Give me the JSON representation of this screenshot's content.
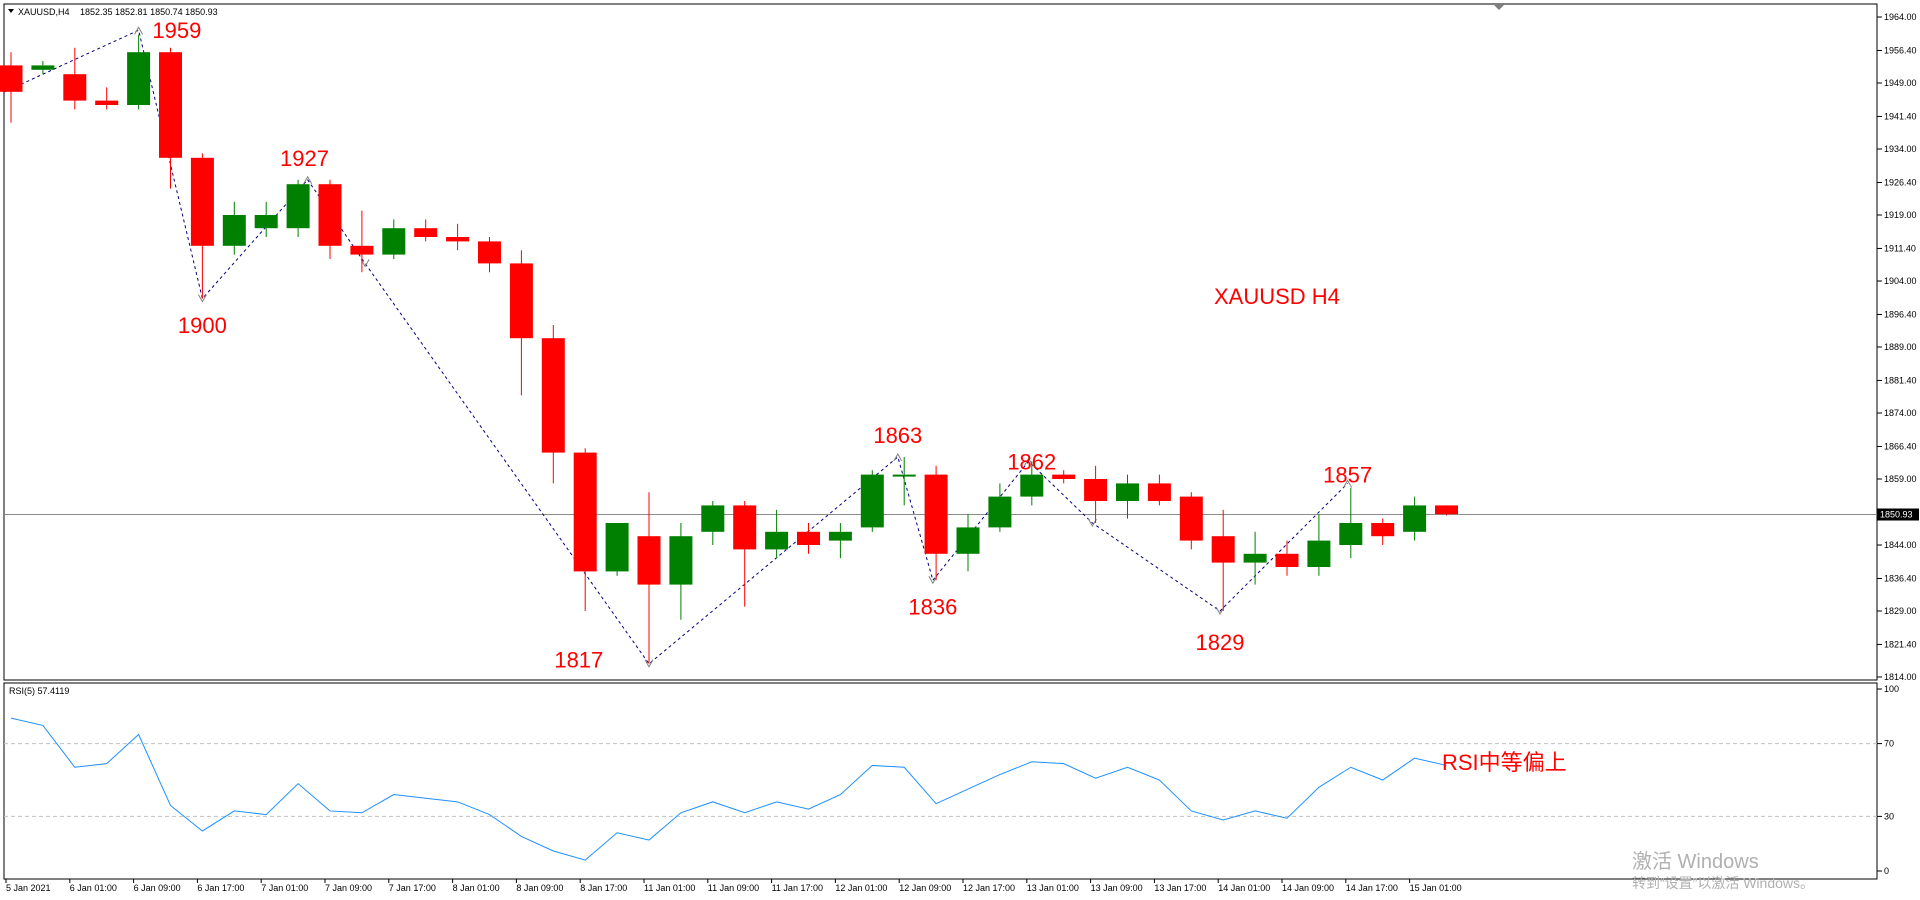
{
  "header": {
    "symbol": "XAUUSD,H4",
    "ohlc": "1852.35 1852.81 1850.74 1850.93"
  },
  "watermark": {
    "line1": "激活 Windows",
    "line2": "转到“设置”以激活 Windows。"
  },
  "colors": {
    "bull": "#008000",
    "bear": "#ff0000",
    "annotation": "#ff0000",
    "zigzag": "#000080",
    "rsi_line": "#1e90ff",
    "grid": "#c0c0c0"
  },
  "chart_data": [
    {
      "type": "candlestick",
      "title": "XAUUSD  H4",
      "ylim": [
        1814.0,
        1964.0
      ],
      "yticks": [
        "1964.00",
        "1956.40",
        "1949.00",
        "1941.40",
        "1934.00",
        "1926.40",
        "1919.00",
        "1911.40",
        "1904.00",
        "1896.40",
        "1889.00",
        "1881.40",
        "1874.00",
        "1866.40",
        "1859.00",
        "1851.40",
        "1844.00",
        "1836.40",
        "1829.00",
        "1821.40",
        "1814.00"
      ],
      "current_price": "1850.93",
      "candles": [
        {
          "o": 1953.0,
          "h": 1956.0,
          "l": 1940.0,
          "c": 1947.0
        },
        {
          "o": 1952.0,
          "h": 1954.0,
          "l": 1951.0,
          "c": 1953.0
        },
        {
          "o": 1951.0,
          "h": 1957.0,
          "l": 1943.0,
          "c": 1945.0
        },
        {
          "o": 1945.0,
          "h": 1948.0,
          "l": 1943.0,
          "c": 1944.0
        },
        {
          "o": 1944.0,
          "h": 1960.0,
          "l": 1943.0,
          "c": 1956.0
        },
        {
          "o": 1956.0,
          "h": 1957.0,
          "l": 1925.0,
          "c": 1932.0
        },
        {
          "o": 1932.0,
          "h": 1933.0,
          "l": 1900.0,
          "c": 1912.0
        },
        {
          "o": 1912.0,
          "h": 1922.0,
          "l": 1910.0,
          "c": 1919.0
        },
        {
          "o": 1916.0,
          "h": 1922.0,
          "l": 1914.0,
          "c": 1919.0
        },
        {
          "o": 1916.0,
          "h": 1927.0,
          "l": 1914.0,
          "c": 1926.0
        },
        {
          "o": 1926.0,
          "h": 1927.0,
          "l": 1909.0,
          "c": 1912.0
        },
        {
          "o": 1912.0,
          "h": 1920.0,
          "l": 1906.0,
          "c": 1910.0
        },
        {
          "o": 1910.0,
          "h": 1918.0,
          "l": 1909.0,
          "c": 1916.0
        },
        {
          "o": 1916.0,
          "h": 1918.0,
          "l": 1913.0,
          "c": 1914.0
        },
        {
          "o": 1914.0,
          "h": 1917.0,
          "l": 1911.0,
          "c": 1913.0
        },
        {
          "o": 1913.0,
          "h": 1914.0,
          "l": 1906.0,
          "c": 1908.0
        },
        {
          "o": 1908.0,
          "h": 1911.0,
          "l": 1878.0,
          "c": 1891.0
        },
        {
          "o": 1891.0,
          "h": 1894.0,
          "l": 1858.0,
          "c": 1865.0
        },
        {
          "o": 1865.0,
          "h": 1866.0,
          "l": 1829.0,
          "c": 1838.0
        },
        {
          "o": 1838.0,
          "h": 1849.0,
          "l": 1837.0,
          "c": 1849.0
        },
        {
          "o": 1846.0,
          "h": 1856.0,
          "l": 1817.0,
          "c": 1835.0
        },
        {
          "o": 1835.0,
          "h": 1849.0,
          "l": 1827.0,
          "c": 1846.0
        },
        {
          "o": 1847.0,
          "h": 1854.0,
          "l": 1844.0,
          "c": 1853.0
        },
        {
          "o": 1853.0,
          "h": 1854.0,
          "l": 1830.0,
          "c": 1843.0
        },
        {
          "o": 1843.0,
          "h": 1852.0,
          "l": 1841.0,
          "c": 1847.0
        },
        {
          "o": 1847.0,
          "h": 1849.0,
          "l": 1842.0,
          "c": 1844.0
        },
        {
          "o": 1845.0,
          "h": 1849.0,
          "l": 1841.0,
          "c": 1847.0
        },
        {
          "o": 1848.0,
          "h": 1861.0,
          "l": 1847.0,
          "c": 1860.0
        },
        {
          "o": 1860.0,
          "h": 1864.0,
          "l": 1853.0,
          "c": 1860.0
        },
        {
          "o": 1860.0,
          "h": 1862.0,
          "l": 1836.0,
          "c": 1842.0
        },
        {
          "o": 1842.0,
          "h": 1851.0,
          "l": 1838.0,
          "c": 1848.0
        },
        {
          "o": 1848.0,
          "h": 1858.0,
          "l": 1847.0,
          "c": 1855.0
        },
        {
          "o": 1855.0,
          "h": 1863.0,
          "l": 1853.0,
          "c": 1860.0
        },
        {
          "o": 1860.0,
          "h": 1861.0,
          "l": 1858.0,
          "c": 1859.0
        },
        {
          "o": 1859.0,
          "h": 1862.0,
          "l": 1849.0,
          "c": 1854.0
        },
        {
          "o": 1854.0,
          "h": 1860.0,
          "l": 1850.0,
          "c": 1858.0
        },
        {
          "o": 1858.0,
          "h": 1860.0,
          "l": 1853.0,
          "c": 1854.0
        },
        {
          "o": 1855.0,
          "h": 1856.0,
          "l": 1843.0,
          "c": 1845.0
        },
        {
          "o": 1846.0,
          "h": 1852.0,
          "l": 1829.0,
          "c": 1840.0
        },
        {
          "o": 1840.0,
          "h": 1847.0,
          "l": 1835.0,
          "c": 1842.0
        },
        {
          "o": 1842.0,
          "h": 1845.0,
          "l": 1837.0,
          "c": 1839.0
        },
        {
          "o": 1839.0,
          "h": 1851.0,
          "l": 1837.0,
          "c": 1845.0
        },
        {
          "o": 1844.0,
          "h": 1857.0,
          "l": 1841.0,
          "c": 1849.0
        },
        {
          "o": 1849.0,
          "h": 1850.0,
          "l": 1844.0,
          "c": 1846.0
        },
        {
          "o": 1847.0,
          "h": 1855.0,
          "l": 1845.0,
          "c": 1853.0
        },
        {
          "o": 1853.0,
          "h": 1853.0,
          "l": 1850.7,
          "c": 1851.0
        }
      ],
      "zigzag": [
        {
          "i": -0.2,
          "price": 1947.0
        },
        {
          "i": 4.0,
          "price": 1961.0
        },
        {
          "i": 6.0,
          "price": 1900.0
        },
        {
          "i": 9.3,
          "price": 1927.0
        },
        {
          "i": 11.1,
          "price": 1908.0
        },
        {
          "i": 20.0,
          "price": 1817.0
        },
        {
          "i": 27.8,
          "price": 1864.0
        },
        {
          "i": 28.9,
          "price": 1836.0
        },
        {
          "i": 31.9,
          "price": 1863.0
        },
        {
          "i": 33.9,
          "price": 1849.0
        },
        {
          "i": 37.9,
          "price": 1829.0
        },
        {
          "i": 41.9,
          "price": 1858.0
        }
      ],
      "annotations": [
        {
          "text": "1959",
          "i": 5.2,
          "price": 1961.0
        },
        {
          "text": "1900",
          "i": 6.0,
          "price": 1894.0
        },
        {
          "text": "1927",
          "i": 9.2,
          "price": 1932.0
        },
        {
          "text": "1817",
          "i": 17.8,
          "price": 1818.0
        },
        {
          "text": "1863",
          "i": 27.8,
          "price": 1869.0
        },
        {
          "text": "1836",
          "i": 28.9,
          "price": 1830.0
        },
        {
          "text": "1862",
          "i": 32.0,
          "price": 1863.0
        },
        {
          "text": "1829",
          "i": 37.9,
          "price": 1822.0
        },
        {
          "text": "1857",
          "i": 41.9,
          "price": 1860.0
        }
      ],
      "label": "XAUUSD  H4"
    },
    {
      "type": "line",
      "title": "RSI(5) 57.4119",
      "ylim": [
        0,
        100
      ],
      "yticks": [
        "100",
        "70",
        "30",
        "0"
      ],
      "levels": [
        70,
        30
      ],
      "series": [
        {
          "values": [
            84,
            80,
            57,
            59,
            75,
            36,
            22,
            33,
            31,
            48,
            33,
            32,
            42,
            40,
            38,
            31,
            19,
            11,
            6,
            21,
            17,
            32,
            38,
            32,
            38,
            34,
            42,
            58,
            57,
            37,
            45,
            53,
            60,
            59,
            51,
            57,
            50,
            33,
            28,
            33,
            29,
            46,
            57,
            50,
            62,
            58
          ]
        }
      ],
      "xticks": [
        "5 Jan 2021",
        "6 Jan 01:00",
        "6 Jan 09:00",
        "6 Jan 17:00",
        "7 Jan 01:00",
        "7 Jan 09:00",
        "7 Jan 17:00",
        "8 Jan 01:00",
        "8 Jan 09:00",
        "8 Jan 17:00",
        "11 Jan 01:00",
        "11 Jan 09:00",
        "11 Jan 17:00",
        "12 Jan 01:00",
        "12 Jan 09:00",
        "12 Jan 17:00",
        "13 Jan 01:00",
        "13 Jan 09:00",
        "13 Jan 17:00",
        "14 Jan 01:00",
        "14 Jan 09:00",
        "14 Jan 17:00",
        "15 Jan 01:00"
      ],
      "label": "RSI中等偏上"
    }
  ]
}
